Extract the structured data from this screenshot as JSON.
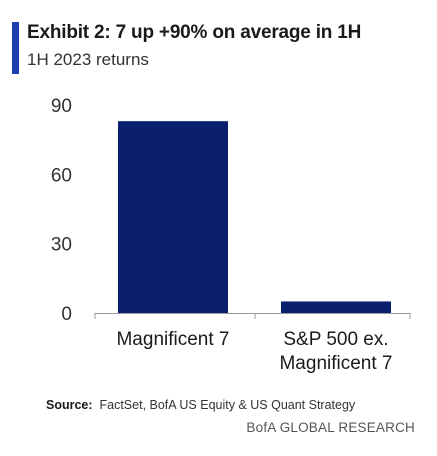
{
  "header": {
    "title": "Exhibit 2: 7 up +90% on average in 1H",
    "subtitle": "1H 2023 returns"
  },
  "footer": {
    "source_label": "Source:",
    "source_text": "FactSet, BofA US Equity & US Quant Strategy",
    "credit": "BofA GLOBAL RESEARCH"
  },
  "colors": {
    "accent": "#1e3fae",
    "bar": "#0a1f6e",
    "axis": "#999999"
  },
  "chart_data": {
    "type": "bar",
    "categories": [
      [
        "Magnificent 7"
      ],
      [
        "S&P 500 ex.",
        "Magnificent 7"
      ]
    ],
    "values": [
      83,
      5
    ],
    "title": "Exhibit 2: 7 up +90% on average in 1H",
    "subtitle": "1H 2023 returns",
    "xlabel": "",
    "ylabel": "",
    "ylim": [
      0,
      90
    ],
    "yticks": [
      0,
      30,
      60,
      90
    ],
    "grid": false,
    "legend": "none"
  }
}
